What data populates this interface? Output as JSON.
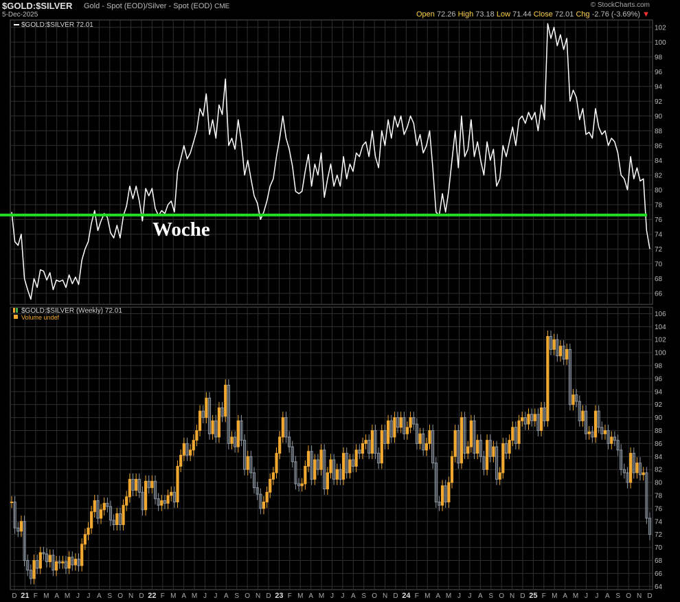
{
  "header": {
    "symbol": "$GOLD:$SILVER",
    "description": "Gold - Spot (EOD)/Silver - Spot (EOD)",
    "exchange": "CME",
    "date": "5-Dec-2025",
    "watermark": "© StockCharts.com",
    "open_label": "Open",
    "open": "72.26",
    "high_label": "High",
    "high": "73.18",
    "low_label": "Low",
    "low": "71.44",
    "close_label": "Close",
    "close": "72.01",
    "chg_label": "Chg",
    "chg": "-2.76 (-3.69%)",
    "chg_arrow": "▼"
  },
  "annotation": "Woche",
  "colors": {
    "background": "#000000",
    "grid": "#2f2f2f",
    "line": "#ffffff",
    "support": "#22dd22",
    "candle_up": "#f0a830",
    "candle_down": "#8d97a3",
    "negative": "#ff3333"
  },
  "chart_data": [
    {
      "type": "line",
      "legend": "$GOLD:$SILVER 72.01",
      "ylim": [
        64.5,
        103
      ],
      "yticks": [
        66,
        68,
        70,
        72,
        74,
        76,
        78,
        80,
        82,
        84,
        86,
        88,
        90,
        92,
        94,
        96,
        98,
        100,
        102
      ],
      "grid": true,
      "support_line": 76.6,
      "series": [
        {
          "values": [
            77,
            73,
            72.5,
            74,
            68,
            66.5,
            65.2,
            68,
            66.8,
            69.2,
            69,
            67.8,
            68.8,
            66.5,
            67.8,
            67.6,
            67.8,
            66.8,
            68.5,
            67.3,
            68.2,
            67.2,
            70.5,
            72,
            73,
            75.5,
            77.2,
            74.5,
            75.8,
            76.8,
            76.3,
            74.2,
            73.5,
            75.2,
            73.5,
            76.5,
            77.8,
            80.5,
            78.8,
            80.5,
            78.5,
            75.8,
            80.2,
            79.2,
            80.2,
            77.5,
            76.5,
            77.2,
            76.8,
            78,
            78.5,
            77,
            82.5,
            84.2,
            86,
            84.2,
            85,
            86.5,
            88,
            91,
            90,
            93,
            87.5,
            89.5,
            87,
            91.5,
            90.2,
            95,
            86,
            87,
            85.5,
            89.5,
            86.5,
            82,
            84,
            81.5,
            79.2,
            78.2,
            76,
            77,
            78.5,
            80.5,
            81.5,
            84.5,
            87,
            90,
            87,
            85.5,
            83.2,
            79.8,
            79.5,
            79.8,
            82.5,
            84.8,
            80.5,
            83.5,
            82,
            85,
            79,
            81.5,
            83.5,
            80.5,
            82,
            80.5,
            84.5,
            81.5,
            83.5,
            82.5,
            85,
            84.5,
            86,
            86.5,
            84.5,
            88,
            84.5,
            83,
            88,
            86,
            89.5,
            87,
            90,
            88.5,
            90,
            87.5,
            88.5,
            90,
            89,
            86,
            87.5,
            85,
            86,
            88,
            83,
            77,
            76.5,
            79.5,
            77,
            80,
            84,
            88,
            83,
            90,
            84.5,
            85.5,
            89.5,
            84.5,
            86.5,
            84,
            82,
            86.5,
            84,
            85.5,
            80.5,
            81.5,
            86,
            84.5,
            86.5,
            88.5,
            86,
            89.5,
            90,
            89,
            90.5,
            89.5,
            90.5,
            88,
            91.5,
            89.5,
            102.5,
            100.5,
            102,
            99.5,
            101,
            99,
            100.5,
            92,
            93.5,
            92.5,
            89.5,
            91,
            87.5,
            87.8,
            87,
            91,
            88.5,
            87.5,
            88,
            86,
            87,
            86.5,
            85,
            82,
            81.5,
            80,
            84.5,
            81.5,
            83,
            81.2,
            81.5,
            74.5,
            72.01
          ]
        }
      ]
    },
    {
      "type": "candlestick",
      "legend": "$GOLD:$SILVER (Weekly) 72.01",
      "sublegend": "Volume undef",
      "ylim": [
        63.5,
        107
      ],
      "yticks": [
        64,
        66,
        68,
        70,
        72,
        74,
        76,
        78,
        80,
        82,
        84,
        86,
        88,
        90,
        92,
        94,
        96,
        98,
        100,
        102,
        104,
        106
      ],
      "grid": true,
      "xticks": [
        "D",
        "21",
        "F",
        "M",
        "A",
        "M",
        "J",
        "J",
        "A",
        "S",
        "O",
        "N",
        "D",
        "22",
        "F",
        "M",
        "A",
        "M",
        "J",
        "J",
        "A",
        "S",
        "O",
        "N",
        "D",
        "23",
        "F",
        "M",
        "A",
        "M",
        "J",
        "J",
        "A",
        "S",
        "O",
        "N",
        "D",
        "24",
        "F",
        "M",
        "A",
        "M",
        "J",
        "J",
        "A",
        "S",
        "O",
        "N",
        "D",
        "25",
        "F",
        "M",
        "A",
        "M",
        "J",
        "J",
        "A",
        "S",
        "O",
        "N",
        "D"
      ],
      "year_ticks": [
        "21",
        "22",
        "23",
        "24",
        "25"
      ]
    }
  ]
}
